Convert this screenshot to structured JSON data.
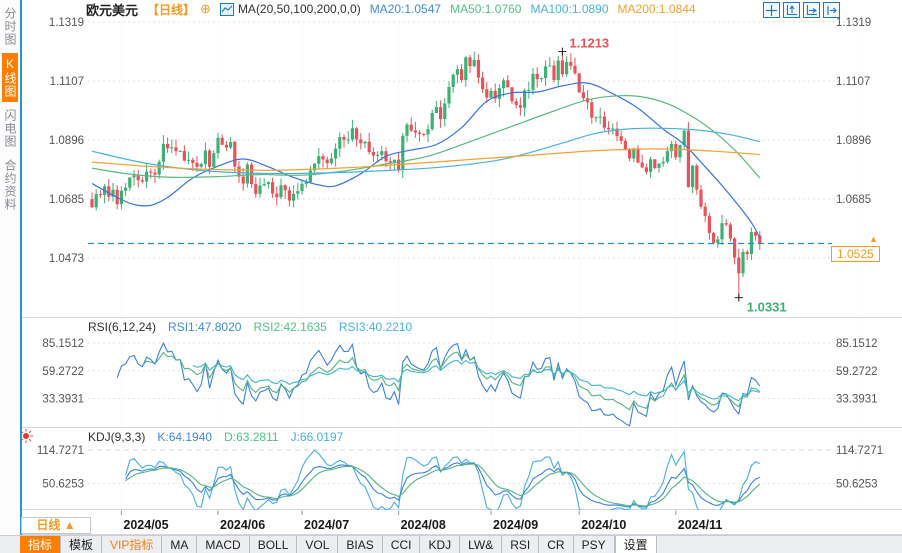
{
  "colors": {
    "accent": "#ff7e00",
    "tag": "#f59a23",
    "up": "#3bb273",
    "down": "#e85359",
    "ma20": "#3a74d8",
    "ma50": "#5cb880",
    "ma100": "#47b2e0",
    "ma200": "#f5a033",
    "rsi1": "#3b82dd",
    "rsi2": "#54b47e",
    "rsi3": "#3fb4cf",
    "k": "#3b82dd",
    "d": "#54b47e",
    "j": "#45b0dd",
    "price_line": "#2288ee",
    "grid": "#e2e2e6",
    "axis_text": "#555",
    "date_text": "#1a1a1a",
    "sidebar_border": "#2596d1",
    "icon_blue": "#1a7ac4",
    "marker_cross": "#222"
  },
  "sidebar": {
    "items": [
      {
        "label": "分时图",
        "active": false
      },
      {
        "label": "K线图",
        "active": true
      },
      {
        "label": "闪电图",
        "active": false
      },
      {
        "label": "合约资料",
        "active": false
      }
    ]
  },
  "header": {
    "symbol": "欧元美元",
    "period": "【日线】",
    "add_icon": "⊕",
    "chart_icon": "line-chart-icon",
    "ma_label": "MA(20,50,100,200,0,0)",
    "ma20": "MA20:1.0547",
    "ma50": "MA50:1.0760",
    "ma100": "MA100:1.0890",
    "ma200": "MA200:1.0844"
  },
  "toolbar": {
    "icons": [
      "pan-move-icon",
      "y-scale-icon",
      "x-scale-icon",
      "jump-latest-icon"
    ]
  },
  "rsi": {
    "title": "RSI(6,12,24)",
    "v1": "RSI1:47.8020",
    "v2": "RSI2:42.1635",
    "v3": "RSI3:40.2210",
    "axis_labels": [
      "85.1512",
      "59.2722",
      "33.3931"
    ]
  },
  "kdj": {
    "title": "KDJ(9,3,3)",
    "k": "K:64.1940",
    "d": "D:63.2811",
    "j": "J:66.0197",
    "axis_labels": [
      "114.7271",
      "50.6253"
    ],
    "settings_icon": "sun-icon"
  },
  "price_tag": {
    "value": "1.0525",
    "arrow": "▲"
  },
  "xaxis": {
    "period_button": "日线 ▲"
  },
  "tabs": {
    "items": [
      {
        "label": "指标",
        "style": "active"
      },
      {
        "label": "模板",
        "style": ""
      },
      {
        "label": "VIP指标",
        "style": "vip"
      },
      {
        "label": "MA",
        "style": ""
      },
      {
        "label": "MACD",
        "style": ""
      },
      {
        "label": "BOLL",
        "style": ""
      },
      {
        "label": "VOL",
        "style": ""
      },
      {
        "label": "BIAS",
        "style": ""
      },
      {
        "label": "CCI",
        "style": ""
      },
      {
        "label": "KDJ",
        "style": ""
      },
      {
        "label": "LW&",
        "style": ""
      },
      {
        "label": "RSI",
        "style": ""
      },
      {
        "label": "CR",
        "style": ""
      },
      {
        "label": "PSY",
        "style": ""
      },
      {
        "label": "设置",
        "style": "settings"
      }
    ]
  },
  "chart_data": {
    "type": "candlestick",
    "title": "欧元美元 日线 (EUR/USD daily)",
    "y_axis": {
      "levels": [
        1.1319,
        1.1107,
        1.0896,
        1.0685,
        1.0473
      ],
      "labels": [
        "1.1319",
        "1.1107",
        "1.0896",
        "1.0685",
        "1.0473"
      ],
      "ylim": [
        1.04,
        1.1319
      ]
    },
    "months": [
      {
        "label": "2024/05",
        "index": 7
      },
      {
        "label": "2024/06",
        "index": 30
      },
      {
        "label": "2024/07",
        "index": 50
      },
      {
        "label": "2024/08",
        "index": 73
      },
      {
        "label": "2024/09",
        "index": 95
      },
      {
        "label": "2024/10",
        "index": 116
      },
      {
        "label": "2024/11",
        "index": 139
      }
    ],
    "open_first": 1.0684,
    "closes": [
      1.0655,
      1.0702,
      1.0699,
      1.073,
      1.0693,
      1.0718,
      1.0666,
      1.0714,
      1.0725,
      1.0762,
      1.0769,
      1.0752,
      1.0747,
      1.0783,
      1.0779,
      1.0772,
      1.0818,
      1.0882,
      1.0866,
      1.087,
      1.0856,
      1.0857,
      1.0822,
      1.0825,
      1.0814,
      1.08,
      1.081,
      1.0858,
      1.08,
      1.0849,
      1.0904,
      1.0879,
      1.0869,
      1.0889,
      1.0801,
      1.0765,
      1.074,
      1.0808,
      1.0738,
      1.0703,
      1.0733,
      1.0738,
      1.0745,
      1.0704,
      1.0691,
      1.0734,
      1.0716,
      1.0679,
      1.0703,
      1.0713,
      1.0739,
      1.0745,
      1.0787,
      1.0811,
      1.0838,
      1.0826,
      1.0813,
      1.083,
      1.0865,
      1.0907,
      1.0897,
      1.0898,
      1.0938,
      1.0898,
      1.0884,
      1.089,
      1.0853,
      1.084,
      1.0843,
      1.0856,
      1.082,
      1.0815,
      1.0826,
      1.0789,
      1.0911,
      1.0951,
      1.093,
      1.0923,
      1.0918,
      1.0916,
      1.0935,
      1.0993,
      1.1014,
      1.0971,
      1.1027,
      1.1086,
      1.113,
      1.115,
      1.1111,
      1.1192,
      1.1161,
      1.1183,
      1.112,
      1.1078,
      1.1048,
      1.1072,
      1.1044,
      1.1082,
      1.111,
      1.1085,
      1.1035,
      1.1021,
      1.1012,
      1.1074,
      1.1076,
      1.1133,
      1.1114,
      1.1118,
      1.116,
      1.1163,
      1.1111,
      1.1181,
      1.1132,
      1.1176,
      1.1162,
      1.1135,
      1.1067,
      1.1046,
      1.1031,
      1.0976,
      1.0977,
      1.098,
      1.094,
      1.0935,
      1.0937,
      1.091,
      1.0893,
      1.0861,
      1.083,
      1.0866,
      1.0815,
      1.0798,
      1.0782,
      1.0827,
      1.0796,
      1.0812,
      1.0818,
      1.0856,
      1.0882,
      1.0834,
      1.0878,
      1.093,
      1.0727,
      1.0804,
      1.0718,
      1.0657,
      1.0624,
      1.0563,
      1.0527,
      1.054,
      1.0598,
      1.0593,
      1.0543,
      1.0475,
      1.0418,
      1.0495,
      1.0487,
      1.0566,
      1.0553,
      1.0525
    ],
    "markers": {
      "high": {
        "index": 112,
        "price": 1.1213,
        "label": "1.1213"
      },
      "low": {
        "index": 154,
        "price": 1.0331,
        "label": "1.0331"
      }
    },
    "current_price": {
      "value": 1.0525,
      "label": "1.0525"
    },
    "moving_averages": [
      {
        "name": "MA20",
        "color_key": "ma20",
        "anchors": [
          [
            0,
            1.074
          ],
          [
            6,
            1.069
          ],
          [
            10,
            1.0665
          ],
          [
            14,
            1.0662
          ],
          [
            18,
            1.069
          ],
          [
            24,
            1.076
          ],
          [
            30,
            1.0802
          ],
          [
            36,
            1.0828
          ],
          [
            42,
            1.08
          ],
          [
            48,
            1.0762
          ],
          [
            54,
            1.0735
          ],
          [
            58,
            1.0732
          ],
          [
            64,
            1.0775
          ],
          [
            70,
            1.0838
          ],
          [
            76,
            1.086
          ],
          [
            82,
            1.088
          ],
          [
            88,
            1.094
          ],
          [
            94,
            1.1035
          ],
          [
            100,
            1.1065
          ],
          [
            106,
            1.1068
          ],
          [
            112,
            1.109
          ],
          [
            118,
            1.11
          ],
          [
            124,
            1.1062
          ],
          [
            130,
            1.101
          ],
          [
            136,
            1.0935
          ],
          [
            141,
            1.088
          ],
          [
            146,
            1.08
          ],
          [
            150,
            1.0733
          ],
          [
            154,
            1.066
          ],
          [
            157,
            1.06
          ],
          [
            159,
            1.0547
          ]
        ]
      },
      {
        "name": "MA50",
        "color_key": "ma50",
        "anchors": [
          [
            0,
            1.0795
          ],
          [
            10,
            1.0772
          ],
          [
            20,
            1.0762
          ],
          [
            30,
            1.0765
          ],
          [
            40,
            1.0772
          ],
          [
            50,
            1.077
          ],
          [
            60,
            1.0785
          ],
          [
            70,
            1.081
          ],
          [
            80,
            1.0838
          ],
          [
            90,
            1.089
          ],
          [
            100,
            1.0945
          ],
          [
            110,
            1.1
          ],
          [
            118,
            1.104
          ],
          [
            126,
            1.1055
          ],
          [
            132,
            1.1048
          ],
          [
            138,
            1.102
          ],
          [
            144,
            1.097
          ],
          [
            149,
            1.0915
          ],
          [
            154,
            1.0845
          ],
          [
            159,
            1.076
          ]
        ]
      },
      {
        "name": "MA100",
        "color_key": "ma100",
        "anchors": [
          [
            0,
            1.0856
          ],
          [
            12,
            1.0815
          ],
          [
            24,
            1.079
          ],
          [
            36,
            1.0778
          ],
          [
            48,
            1.0776
          ],
          [
            60,
            1.078
          ],
          [
            72,
            1.0788
          ],
          [
            84,
            1.08
          ],
          [
            96,
            1.0822
          ],
          [
            104,
            1.085
          ],
          [
            112,
            1.0885
          ],
          [
            120,
            1.092
          ],
          [
            128,
            1.0936
          ],
          [
            136,
            1.0938
          ],
          [
            144,
            1.0932
          ],
          [
            152,
            1.0915
          ],
          [
            159,
            1.089
          ]
        ]
      },
      {
        "name": "MA200",
        "color_key": "ma200",
        "anchors": [
          [
            0,
            1.0817
          ],
          [
            15,
            1.08
          ],
          [
            30,
            1.079
          ],
          [
            45,
            1.0788
          ],
          [
            60,
            1.0796
          ],
          [
            75,
            1.081
          ],
          [
            90,
            1.0826
          ],
          [
            105,
            1.0842
          ],
          [
            120,
            1.0858
          ],
          [
            132,
            1.0864
          ],
          [
            140,
            1.0862
          ],
          [
            148,
            1.0856
          ],
          [
            159,
            1.0844
          ]
        ]
      }
    ],
    "indicators": {
      "rsi": {
        "params": [
          6,
          12,
          24
        ],
        "last": [
          47.802,
          42.1635,
          40.221
        ],
        "axis": [
          85.1512,
          59.2722,
          33.3931
        ]
      },
      "kdj": {
        "params": [
          9,
          3,
          3
        ],
        "last": [
          64.194,
          63.2811,
          66.0197
        ],
        "axis": [
          114.7271,
          50.6253
        ]
      }
    }
  }
}
